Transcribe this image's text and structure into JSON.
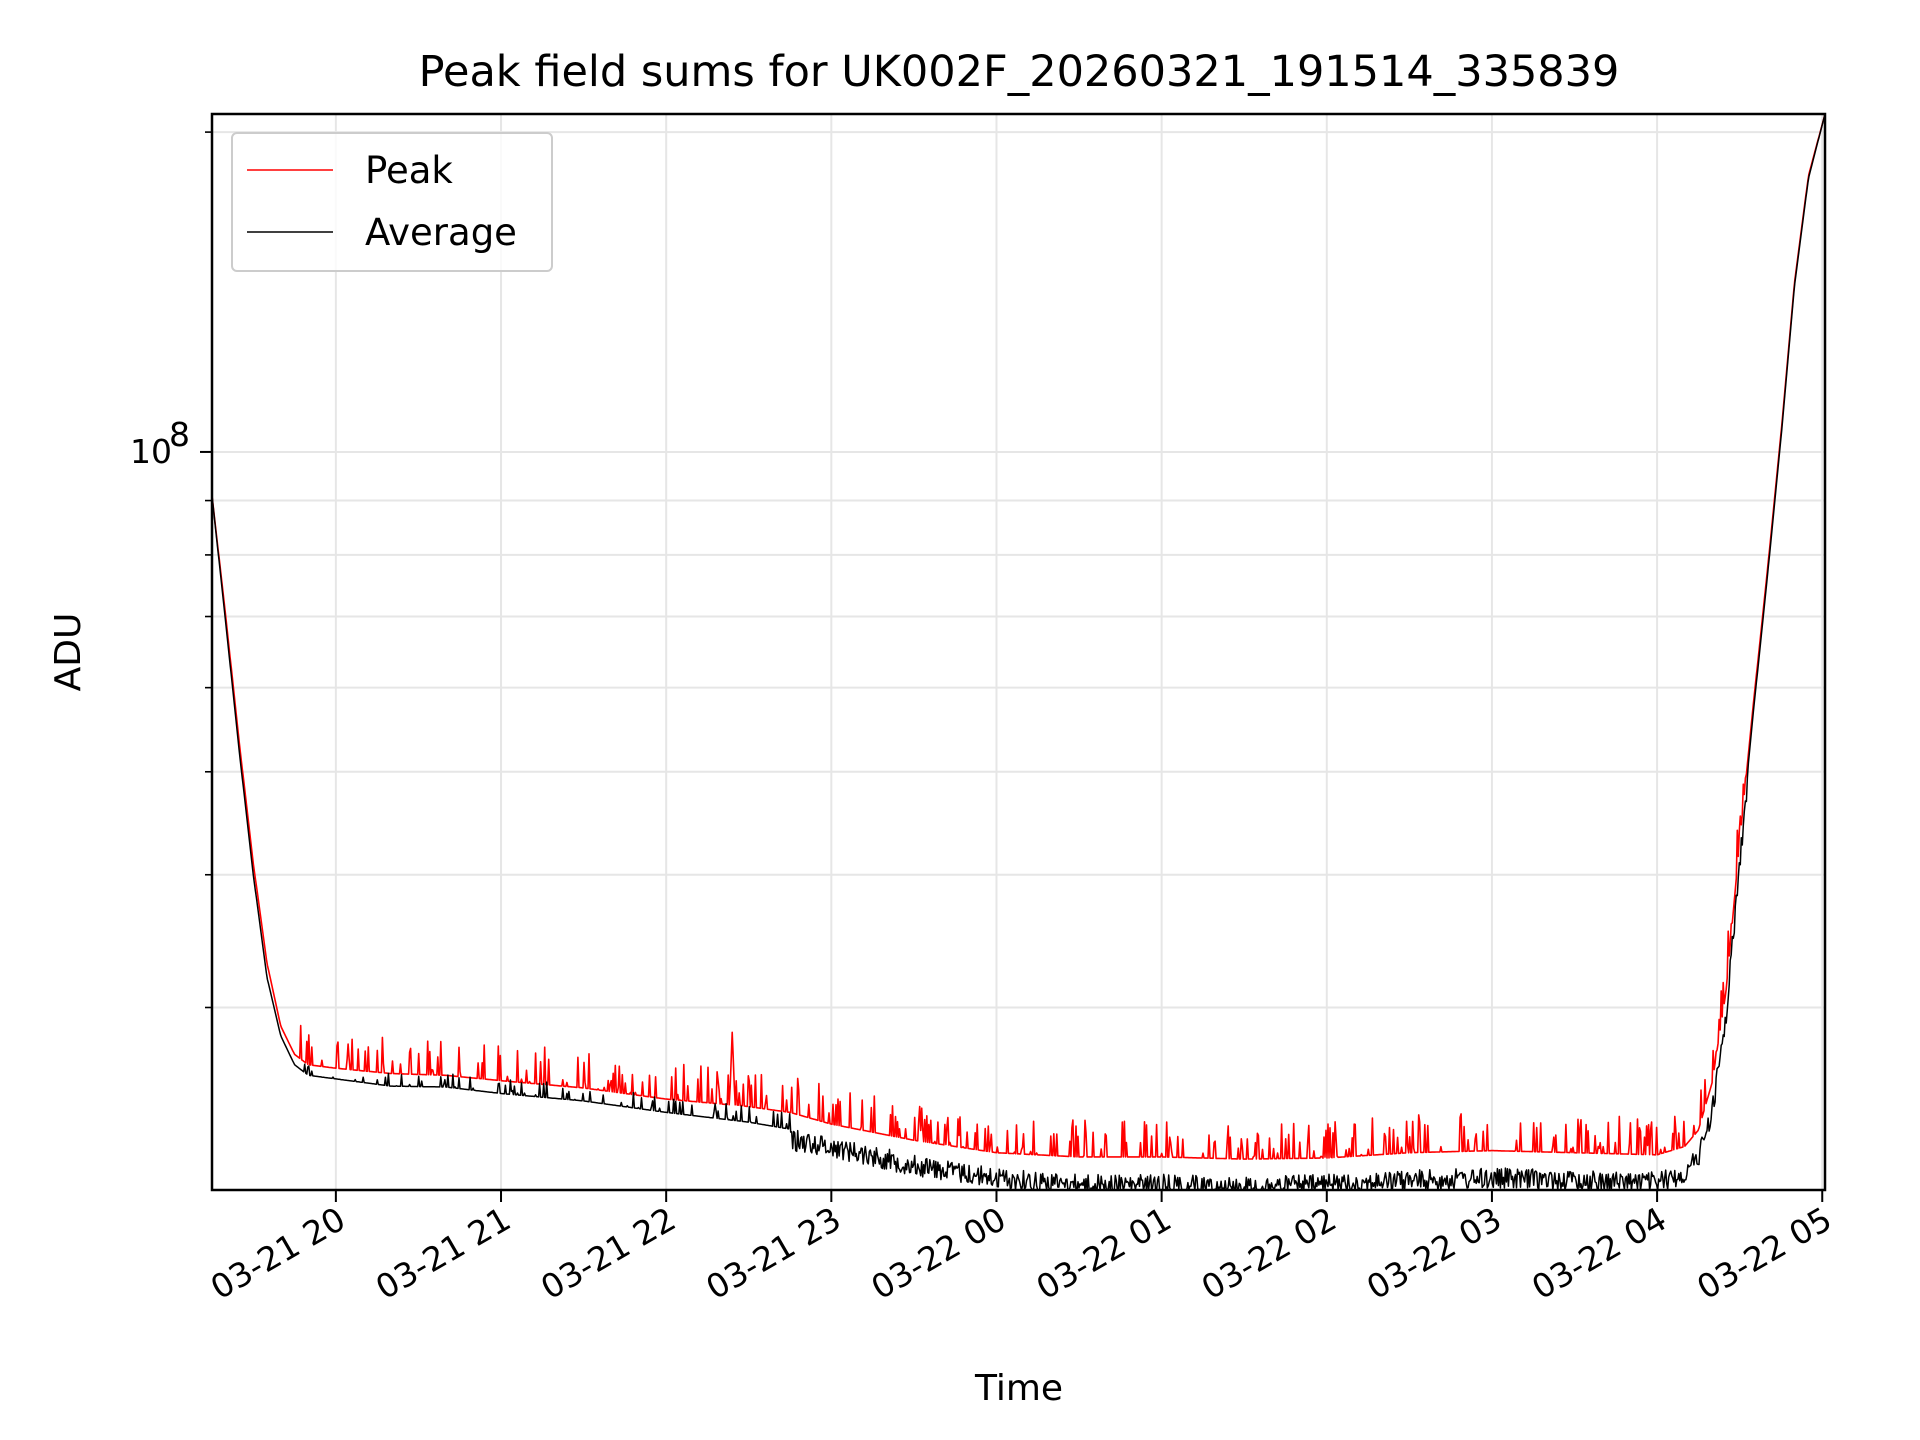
{
  "chart_data": {
    "type": "line",
    "title": "Peak field sums for UK002F_20260321_191514_335839",
    "xlabel": "Time",
    "ylabel": "ADU",
    "y_scale": "log",
    "grid": true,
    "legend_position": "upper-left",
    "xlim": [
      "2026-03-21 19:15",
      "2026-03-22 05:01"
    ],
    "ylim": [
      20200000,
      208000000
    ],
    "x_ticks": [
      "03-21 20",
      "03-21 21",
      "03-21 22",
      "03-21 23",
      "03-22 00",
      "03-22 01",
      "03-22 02",
      "03-22 03",
      "03-22 04",
      "03-22 05"
    ],
    "y_tick_labels": [
      {
        "value": 100000000,
        "base": "10",
        "exp": "8"
      }
    ],
    "y_minor_ticks": [
      20000000,
      30000000,
      40000000,
      50000000,
      60000000,
      70000000,
      80000000,
      90000000,
      200000000
    ],
    "series": [
      {
        "name": "Peak",
        "color": "#ff0000",
        "points": [
          [
            "2026-03-21 19:15",
            91000000
          ],
          [
            "2026-03-21 19:20",
            70000000
          ],
          [
            "2026-03-21 19:25",
            53000000
          ],
          [
            "2026-03-21 19:30",
            41000000
          ],
          [
            "2026-03-21 19:35",
            33000000
          ],
          [
            "2026-03-21 19:40",
            28800000
          ],
          [
            "2026-03-21 19:45",
            27100000
          ],
          [
            "2026-03-21 19:50",
            26500000
          ],
          [
            "2026-03-21 20:00",
            26300000
          ],
          [
            "2026-03-21 20:20",
            26000000
          ],
          [
            "2026-03-21 20:40",
            25900000
          ],
          [
            "2026-03-21 21:00",
            25600000
          ],
          [
            "2026-03-21 21:30",
            25200000
          ],
          [
            "2026-03-21 22:00",
            24600000
          ],
          [
            "2026-03-21 22:23",
            24300000
          ],
          [
            "2026-03-21 22:24",
            28500000
          ],
          [
            "2026-03-21 22:25",
            24300000
          ],
          [
            "2026-03-21 22:45",
            23900000
          ],
          [
            "2026-03-21 23:00",
            23300000
          ],
          [
            "2026-03-21 23:30",
            22500000
          ],
          [
            "2026-03-22 00:00",
            21900000
          ],
          [
            "2026-03-22 00:30",
            21700000
          ],
          [
            "2026-03-22 01:00",
            21700000
          ],
          [
            "2026-03-22 01:30",
            21600000
          ],
          [
            "2026-03-22 02:00",
            21650000
          ],
          [
            "2026-03-22 02:30",
            21900000
          ],
          [
            "2026-03-22 03:00",
            22000000
          ],
          [
            "2026-03-22 03:30",
            21900000
          ],
          [
            "2026-03-22 04:00",
            21800000
          ],
          [
            "2026-03-22 04:10",
            22200000
          ],
          [
            "2026-03-22 04:15",
            23000000
          ],
          [
            "2026-03-22 04:20",
            25500000
          ],
          [
            "2026-03-22 04:25",
            31000000
          ],
          [
            "2026-03-22 04:30",
            43000000
          ],
          [
            "2026-03-22 04:35",
            58000000
          ],
          [
            "2026-03-22 04:40",
            77000000
          ],
          [
            "2026-03-22 04:45",
            104000000
          ],
          [
            "2026-03-22 04:50",
            145000000
          ],
          [
            "2026-03-22 04:55",
            182000000
          ],
          [
            "2026-03-22 05:01",
            208000000
          ]
        ]
      },
      {
        "name": "Average",
        "color": "#000000",
        "points": [
          [
            "2026-03-21 19:15",
            91000000
          ],
          [
            "2026-03-21 19:20",
            69000000
          ],
          [
            "2026-03-21 19:25",
            52000000
          ],
          [
            "2026-03-21 19:30",
            40000000
          ],
          [
            "2026-03-21 19:35",
            32000000
          ],
          [
            "2026-03-21 19:40",
            28200000
          ],
          [
            "2026-03-21 19:45",
            26500000
          ],
          [
            "2026-03-21 19:50",
            25900000
          ],
          [
            "2026-03-21 20:00",
            25700000
          ],
          [
            "2026-03-21 20:20",
            25300000
          ],
          [
            "2026-03-21 20:40",
            25250000
          ],
          [
            "2026-03-21 21:00",
            24900000
          ],
          [
            "2026-03-21 21:30",
            24500000
          ],
          [
            "2026-03-21 22:00",
            23900000
          ],
          [
            "2026-03-21 22:30",
            23400000
          ],
          [
            "2026-03-21 23:00",
            22700000
          ],
          [
            "2026-03-21 23:30",
            21800000
          ],
          [
            "2026-03-22 00:00",
            21200000
          ],
          [
            "2026-03-22 00:30",
            20900000
          ],
          [
            "2026-03-22 01:00",
            20900000
          ],
          [
            "2026-03-22 01:30",
            20800000
          ],
          [
            "2026-03-22 02:00",
            20900000
          ],
          [
            "2026-03-22 02:30",
            21100000
          ],
          [
            "2026-03-22 03:00",
            21200000
          ],
          [
            "2026-03-22 03:30",
            21100000
          ],
          [
            "2026-03-22 04:00",
            21000000
          ],
          [
            "2026-03-22 04:10",
            21400000
          ],
          [
            "2026-03-22 04:15",
            22200000
          ],
          [
            "2026-03-22 04:20",
            24500000
          ],
          [
            "2026-03-22 04:25",
            30000000
          ],
          [
            "2026-03-22 04:30",
            42000000
          ],
          [
            "2026-03-22 04:35",
            57000000
          ],
          [
            "2026-03-22 04:40",
            76000000
          ],
          [
            "2026-03-22 04:45",
            103000000
          ],
          [
            "2026-03-22 04:50",
            144000000
          ],
          [
            "2026-03-22 04:55",
            181000000
          ],
          [
            "2026-03-22 05:01",
            208000000
          ]
        ]
      }
    ]
  }
}
